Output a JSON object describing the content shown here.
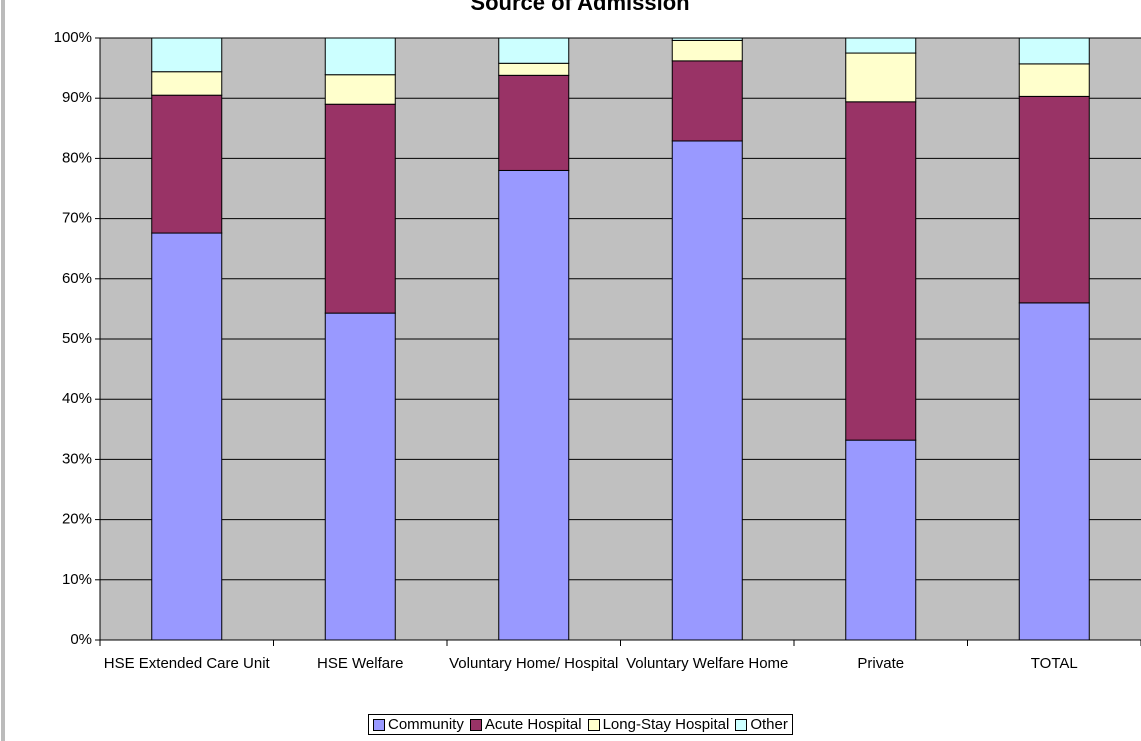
{
  "chart_data": {
    "type": "stacked_bar",
    "title": "Source of Admission",
    "categories": [
      "HSE Extended Care Unit",
      "HSE Welfare",
      "Voluntary Home/ Hospital",
      "Voluntary Welfare Home",
      "Private",
      "TOTAL"
    ],
    "series": [
      {
        "name": "Community",
        "color": "#9999ff",
        "values": [
          67.6,
          54.3,
          78.0,
          82.9,
          33.2,
          56.0
        ]
      },
      {
        "name": "Acute Hospital",
        "color": "#993366",
        "values": [
          22.9,
          34.7,
          15.8,
          13.3,
          56.2,
          34.3
        ]
      },
      {
        "name": "Long-Stay Hospital",
        "color": "#ffffcc",
        "values": [
          3.9,
          4.9,
          2.0,
          3.4,
          8.1,
          5.4
        ]
      },
      {
        "name": "Other",
        "color": "#ccffff",
        "values": [
          5.6,
          6.1,
          4.2,
          0.4,
          2.5,
          4.3
        ]
      }
    ],
    "ylim": [
      0,
      100
    ],
    "yticks": [
      {
        "value": 0,
        "label": "0%"
      },
      {
        "value": 10,
        "label": "10%"
      },
      {
        "value": 20,
        "label": "20%"
      },
      {
        "value": 30,
        "label": "30%"
      },
      {
        "value": 40,
        "label": "40%"
      },
      {
        "value": 50,
        "label": "50%"
      },
      {
        "value": 60,
        "label": "60%"
      },
      {
        "value": 70,
        "label": "70%"
      },
      {
        "value": 80,
        "label": "80%"
      },
      {
        "value": 90,
        "label": "90%"
      },
      {
        "value": 100,
        "label": "100%"
      }
    ],
    "grid": true,
    "legend": "bottom",
    "plot_color": "#c0c0c0"
  }
}
